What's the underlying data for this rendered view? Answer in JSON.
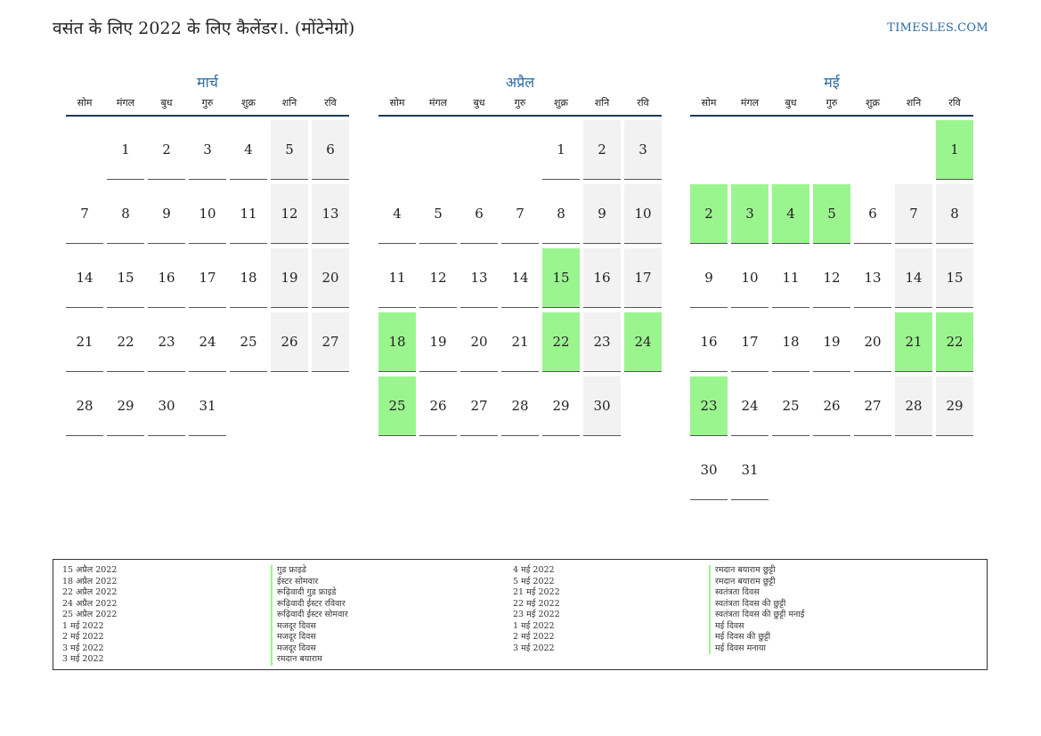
{
  "header": {
    "title": "वसंत के लिए 2022 के लिए कैलेंडर।. (मोंटेनेग्रो)",
    "site": "TIMESLES.COM"
  },
  "weekdays": [
    "सोम",
    "मंगल",
    "बुध",
    "गुरु",
    "शुक्र",
    "शनि",
    "रवि"
  ],
  "colors": {
    "accent": "#2b6aa3",
    "holiday": "#9bf58f",
    "weekend": "#f2f2f2",
    "rule": "#1f3a5c"
  },
  "months": [
    {
      "name": "मार्च",
      "offset": 1,
      "days": 31,
      "holidays": []
    },
    {
      "name": "अप्रैल",
      "offset": 4,
      "days": 30,
      "holidays": [
        15,
        18,
        22,
        24,
        25
      ]
    },
    {
      "name": "मई",
      "offset": 6,
      "days": 31,
      "holidays": [
        1,
        2,
        3,
        4,
        5,
        21,
        22,
        23
      ]
    }
  ],
  "holiday_list": {
    "left": [
      {
        "date": "15 अप्रैल 2022",
        "name": "गुड फ्राइडे"
      },
      {
        "date": "18 अप्रैल 2022",
        "name": "ईस्टर सोमवार"
      },
      {
        "date": "22 अप्रैल 2022",
        "name": "रूढ़िवादी गुड फ्राइडे"
      },
      {
        "date": "24 अप्रैल 2022",
        "name": "रूढ़िवादी ईस्टर रविवार"
      },
      {
        "date": "25 अप्रैल 2022",
        "name": "रूढ़िवादी ईस्टर सोमवार"
      },
      {
        "date": "1 मई 2022",
        "name": "मजदूर दिवस"
      },
      {
        "date": "2 मई 2022",
        "name": "मजदूर दिवस"
      },
      {
        "date": "3 मई 2022",
        "name": "मजदूर दिवस"
      },
      {
        "date": "3 मई 2022",
        "name": "रमदान बयाराम"
      }
    ],
    "right": [
      {
        "date": "4 मई 2022",
        "name": "रमदान बयाराम छुट्टी"
      },
      {
        "date": "5 मई 2022",
        "name": "रमदान बयाराम छुट्टी"
      },
      {
        "date": "21 मई 2022",
        "name": "स्वतंत्रता दिवस"
      },
      {
        "date": "22 मई 2022",
        "name": "स्वतंत्रता दिवस की छुट्टी"
      },
      {
        "date": "23 मई 2022",
        "name": "स्वतंत्रता दिवस की छुट्टी मनाई"
      },
      {
        "date": "1 मई 2022",
        "name": "मई दिवस"
      },
      {
        "date": "2 मई 2022",
        "name": "मई दिवस की छुट्टी"
      },
      {
        "date": "3 मई 2022",
        "name": "मई दिवस मनाया"
      }
    ]
  }
}
